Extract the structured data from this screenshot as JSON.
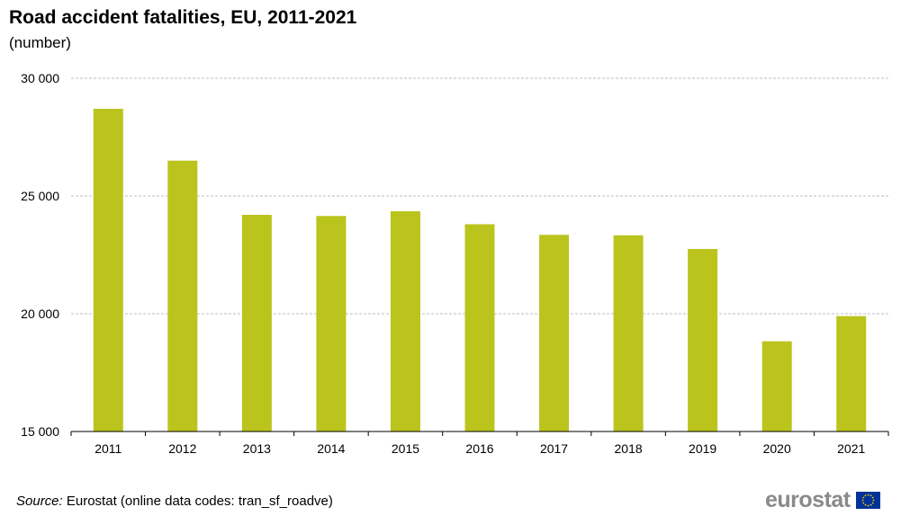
{
  "chart_data": {
    "type": "bar",
    "title": "Road accident fatalities, EU, 2011-2021",
    "subtitle": "(number)",
    "categories": [
      "2011",
      "2012",
      "2013",
      "2014",
      "2015",
      "2016",
      "2017",
      "2018",
      "2019",
      "2020",
      "2021"
    ],
    "values": [
      28700,
      26500,
      24200,
      24150,
      24350,
      23800,
      23350,
      23330,
      22750,
      18830,
      19900
    ],
    "ylim": [
      15000,
      30000
    ],
    "yticks": [
      15000,
      20000,
      25000,
      30000
    ],
    "ytick_labels": [
      "15 000",
      "20 000",
      "25 000",
      "30 000"
    ],
    "xlabel": "",
    "ylabel": "",
    "grid": true,
    "bar_color": "#bac41d",
    "grid_color": "#bfbfbf"
  },
  "footer": {
    "source_label": "Source:",
    "source_text": " Eurostat (online data codes: tran_sf_roadve)",
    "logo_text": "eurostat"
  },
  "colors": {
    "flag_blue": "#003399",
    "flag_stars": "#ffcc00"
  }
}
